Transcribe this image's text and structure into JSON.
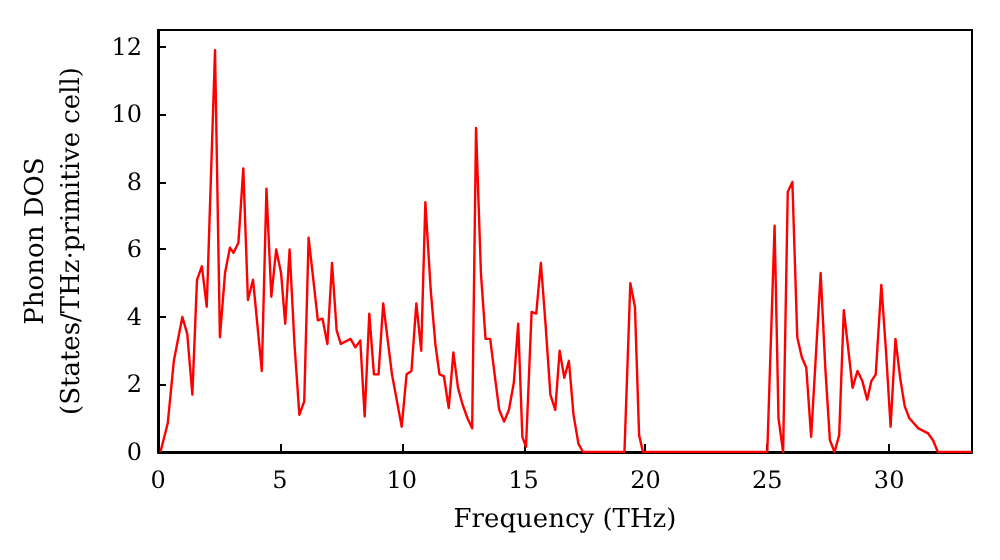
{
  "chart_data": {
    "type": "line",
    "xlabel": "Frequency (THz)",
    "ylabel": "Phonon DOS\n(States/THz·primitive cell)",
    "x": [
      0.1,
      0.4,
      0.65,
      1.0,
      1.2,
      1.41,
      1.6,
      1.8,
      2.0,
      2.34,
      2.54,
      2.75,
      2.95,
      3.1,
      3.3,
      3.5,
      3.69,
      3.9,
      4.26,
      4.45,
      4.65,
      4.85,
      5.05,
      5.22,
      5.4,
      5.6,
      5.8,
      6.0,
      6.18,
      6.56,
      6.75,
      6.95,
      7.14,
      7.33,
      7.5,
      7.9,
      8.1,
      8.3,
      8.48,
      8.67,
      8.86,
      9.05,
      9.24,
      9.6,
      10.0,
      10.2,
      10.4,
      10.6,
      10.8,
      10.97,
      11.19,
      11.38,
      11.55,
      11.73,
      11.93,
      12.12,
      12.31,
      12.5,
      12.7,
      12.89,
      13.05,
      13.25,
      13.44,
      13.63,
      13.83,
      14.0,
      14.2,
      14.4,
      14.6,
      14.78,
      14.95,
      15.1,
      15.33,
      15.52,
      15.71,
      15.9,
      16.1,
      16.3,
      16.48,
      16.67,
      16.86,
      17.05,
      17.25,
      17.44,
      19.14,
      19.38,
      19.57,
      19.74,
      19.9,
      25.0,
      25.3,
      25.46,
      25.65,
      25.84,
      26.03,
      26.23,
      26.42,
      26.6,
      26.8,
      27.19,
      27.38,
      27.57,
      27.76,
      27.95,
      28.14,
      28.33,
      28.5,
      28.7,
      28.9,
      29.1,
      29.27,
      29.45,
      29.68,
      29.87,
      30.06,
      30.26,
      30.45,
      30.64,
      30.83,
      31.2,
      31.6,
      31.8,
      32.0,
      33.4
    ],
    "series": [
      {
        "color": "#ff0000",
        "values": [
          0,
          0.85,
          2.7,
          4.0,
          3.5,
          1.7,
          5.1,
          5.5,
          4.3,
          11.9,
          3.4,
          5.3,
          6.05,
          5.9,
          6.2,
          8.4,
          4.5,
          5.1,
          2.4,
          7.8,
          4.6,
          6.0,
          5.3,
          3.8,
          6.0,
          3.2,
          1.1,
          1.5,
          6.35,
          3.9,
          3.95,
          3.2,
          5.6,
          3.6,
          3.2,
          3.35,
          3.1,
          3.3,
          1.05,
          4.1,
          2.3,
          2.3,
          4.4,
          2.3,
          0.75,
          2.3,
          2.4,
          4.4,
          3.0,
          7.4,
          4.8,
          3.2,
          2.3,
          2.25,
          1.3,
          2.95,
          1.9,
          1.4,
          1.0,
          0.7,
          9.6,
          5.3,
          3.35,
          3.35,
          2.2,
          1.25,
          0.9,
          1.25,
          2.05,
          3.8,
          0.45,
          0.15,
          4.15,
          4.1,
          5.6,
          3.8,
          1.7,
          1.25,
          3.0,
          2.2,
          2.7,
          1.1,
          0.25,
          0,
          0,
          5.0,
          4.3,
          0.5,
          0,
          0,
          6.7,
          1.0,
          0,
          7.7,
          8.0,
          3.4,
          2.8,
          2.5,
          0.45,
          5.3,
          2.5,
          0.35,
          0,
          0.5,
          4.2,
          3.0,
          1.9,
          2.4,
          2.1,
          1.55,
          2.1,
          2.3,
          4.95,
          3.0,
          0.75,
          3.35,
          2.2,
          1.35,
          1.0,
          0.7,
          0.55,
          0.35,
          0,
          0
        ]
      }
    ],
    "xlim": [
      0,
      33.4
    ],
    "xticks": [
      0,
      5,
      10,
      15,
      20,
      25,
      30
    ],
    "ylim": [
      0,
      12.5
    ],
    "yticks": [
      0,
      2,
      4,
      6,
      8,
      10,
      12
    ],
    "grid": false,
    "marker": "none",
    "line_style": "solid"
  }
}
